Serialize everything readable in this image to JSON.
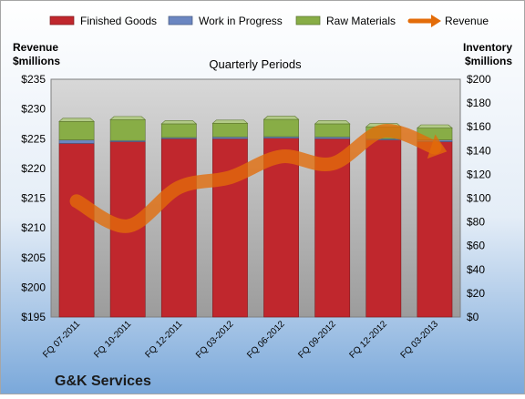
{
  "company": "G&K Services",
  "chart_data": {
    "type": "bar",
    "title": "Quarterly Periods",
    "categories": [
      "FQ 07-2011",
      "FQ 10-2011",
      "FQ 12-2011",
      "FQ 03-2012",
      "FQ 06-2012",
      "FQ 09-2012",
      "FQ 12-2012",
      "FQ 03-2013"
    ],
    "stacked": true,
    "series": [
      {
        "name": "Finished Goods",
        "axis": "right",
        "color": "#c0272d",
        "values": [
          146,
          147.5,
          150,
          150,
          150.5,
          150,
          149,
          147.5
        ]
      },
      {
        "name": "Work in Progress",
        "axis": "right",
        "color": "#6b86c1",
        "values": [
          3,
          1,
          1,
          1.5,
          1.2,
          1.5,
          1,
          1.5
        ]
      },
      {
        "name": "Raw Materials",
        "axis": "right",
        "color": "#88ad46",
        "values": [
          15.5,
          17.5,
          11.5,
          11.5,
          14.5,
          11,
          10,
          10
        ]
      },
      {
        "name": "Revenue",
        "type": "line",
        "axis": "left",
        "color": "#e36c09",
        "values": [
          214.5,
          210.3,
          216.8,
          218.5,
          222,
          220.8,
          226.3,
          223.5
        ]
      }
    ],
    "left_axis": {
      "label_line1": "Revenue",
      "label_line2": "$millions",
      "min": 195,
      "max": 235,
      "step": 5,
      "prefix": "$"
    },
    "right_axis": {
      "label_line1": "Inventory",
      "label_line2": "$millions",
      "min": 0,
      "max": 200,
      "step": 20,
      "prefix": "$"
    },
    "legend_position": "top",
    "grid": false
  }
}
